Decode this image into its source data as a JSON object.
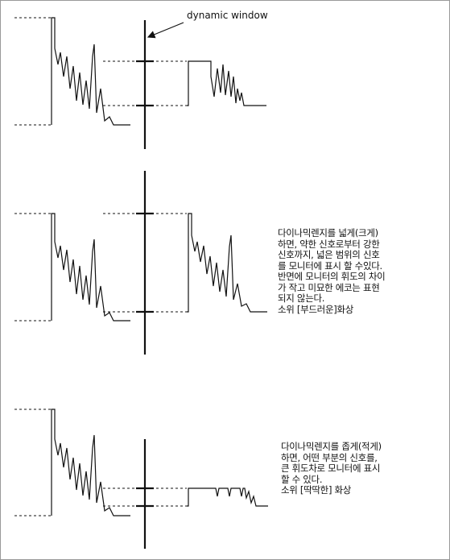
{
  "window_label": "dynamic window",
  "panels": [
    {
      "id": "original",
      "caption": []
    },
    {
      "id": "wide",
      "caption": [
        "다이나믹렌지를 넓게(크게)",
        "하면, 약한 신호로부터 강한",
        "신호까지, 넓은 범위의 신호",
        "를 모니터에 표시 할 수있다.",
        "반면에 모니터의 휘도의 차이",
        "가 작고 미묘한 에코는 표현",
        "되지 않는다.",
        "소위 [부드러운]화상"
      ]
    },
    {
      "id": "narrow",
      "caption": [
        "다이나믹렌지를 좁게(적게)",
        "하면, 어떤 부분의 신호를,",
        "큰 휘도차로 모니터에 표시",
        "할 수 있다.",
        "소위 [딱딱한] 화상"
      ]
    }
  ],
  "colors": {
    "line": "#111111",
    "background": "#ffffff"
  }
}
